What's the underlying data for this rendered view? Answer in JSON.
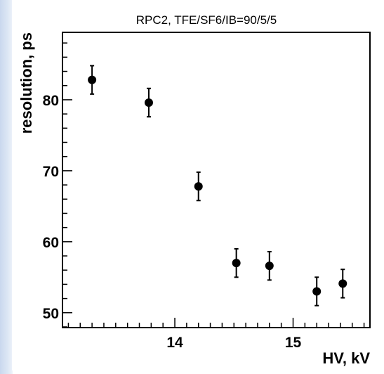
{
  "chart_data": {
    "type": "scatter",
    "title": "RPC2, TFE/SF6/IB=90/5/5",
    "xlabel": "HV, kV",
    "ylabel": "resolution, ps",
    "xlim": [
      13.05,
      15.65
    ],
    "ylim": [
      47.9,
      89.5
    ],
    "x_major_ticks": [
      14,
      15
    ],
    "x_minor_step": 0.1,
    "y_major_ticks": [
      50,
      60,
      70,
      80
    ],
    "y_minor_step": 2,
    "grid": false,
    "legend": "none",
    "marker_color": "#000000",
    "series": [
      {
        "x": [
          13.3,
          13.78,
          14.2,
          14.52,
          14.8,
          15.2,
          15.42
        ],
        "y": [
          82.8,
          79.6,
          67.8,
          57.0,
          56.6,
          53.0,
          54.1
        ],
        "yerr": [
          2.0,
          2.0,
          2.0,
          2.0,
          2.0,
          2.0,
          2.0
        ]
      }
    ]
  }
}
